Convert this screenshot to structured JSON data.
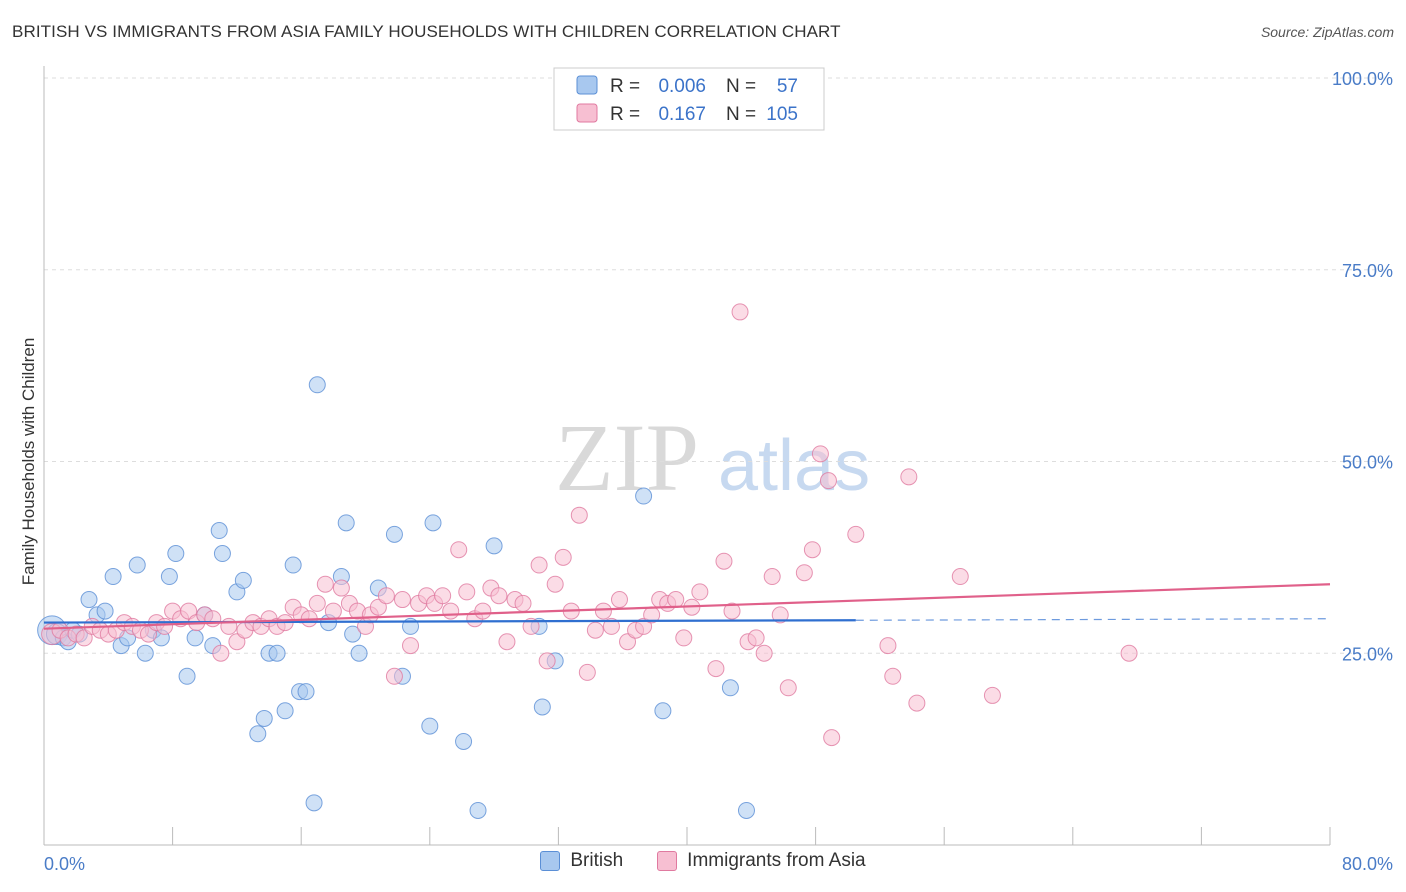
{
  "title": "BRITISH VS IMMIGRANTS FROM ASIA FAMILY HOUSEHOLDS WITH CHILDREN CORRELATION CHART",
  "source": "Source: ZipAtlas.com",
  "watermark": {
    "zip": "ZIP",
    "atlas": "atlas"
  },
  "legend_box": {
    "series": [
      {
        "r_label": "R =",
        "r_value": "0.006",
        "n_label": "N =",
        "n_value": "57"
      },
      {
        "r_label": "R =",
        "r_value": "0.167",
        "n_label": "N =",
        "n_value": "105"
      }
    ]
  },
  "bottom_legend": [
    "British",
    "Immigrants from Asia"
  ],
  "colors": {
    "british_fill": "#a8c8ef",
    "british_stroke": "#5b8fd6",
    "british_line": "#2f6fd0",
    "asia_fill": "#f7bfd2",
    "asia_stroke": "#e07aa0",
    "asia_line": "#e0608a",
    "tick_text": "#4a7cc7",
    "grid": "#dddddd"
  },
  "chart_data": {
    "type": "scatter",
    "title": "BRITISH VS IMMIGRANTS FROM ASIA FAMILY HOUSEHOLDS WITH CHILDREN CORRELATION CHART",
    "xlabel": "",
    "ylabel": "Family Households with Children",
    "xlim": [
      0,
      80
    ],
    "ylim": [
      0,
      100
    ],
    "x_tick_labels": [
      "0.0%",
      "80.0%"
    ],
    "y_ticks": [
      25,
      50,
      75,
      100
    ],
    "y_tick_labels": [
      "25.0%",
      "50.0%",
      "75.0%",
      "100.0%"
    ],
    "grid": true,
    "series": [
      {
        "name": "British",
        "r": 0.006,
        "n": 57,
        "trend": {
          "x0": 0,
          "y0": 29.0,
          "x1": 50.5,
          "y1": 29.3,
          "dashed_to_x": 80,
          "dashed_to_y": 29.5
        },
        "points": [
          [
            0.5,
            28,
            1.8
          ],
          [
            0.8,
            27.5,
            1.3
          ],
          [
            1.2,
            27,
            1.0
          ],
          [
            1.5,
            26.5,
            1.0
          ],
          [
            1.8,
            28,
            1.0
          ],
          [
            2.2,
            27.5,
            1.0
          ],
          [
            2.8,
            32,
            1.0
          ],
          [
            3.3,
            30,
            1.0
          ],
          [
            3.8,
            30.5,
            1.0
          ],
          [
            4.3,
            35,
            1.0
          ],
          [
            4.8,
            26,
            1.0
          ],
          [
            5.2,
            27,
            1.0
          ],
          [
            5.8,
            36.5,
            1.0
          ],
          [
            6.3,
            25,
            1.0
          ],
          [
            6.8,
            28,
            1.0
          ],
          [
            7.3,
            27,
            1.0
          ],
          [
            7.8,
            35,
            1.0
          ],
          [
            8.2,
            38,
            1.0
          ],
          [
            8.9,
            22,
            1.0
          ],
          [
            9.4,
            27,
            1.0
          ],
          [
            10.0,
            30,
            1.0
          ],
          [
            10.5,
            26,
            1.0
          ],
          [
            10.9,
            41,
            1.0
          ],
          [
            11.1,
            38,
            1.0
          ],
          [
            12.0,
            33,
            1.0
          ],
          [
            12.4,
            34.5,
            1.0
          ],
          [
            13.3,
            14.5,
            1.0
          ],
          [
            13.7,
            16.5,
            1.0
          ],
          [
            14.0,
            25,
            1.0
          ],
          [
            14.5,
            25,
            1.0
          ],
          [
            15.0,
            17.5,
            1.0
          ],
          [
            15.5,
            36.5,
            1.0
          ],
          [
            15.9,
            20,
            1.0
          ],
          [
            16.3,
            20,
            1.0
          ],
          [
            16.8,
            5.5,
            1.0
          ],
          [
            17.0,
            60,
            1.0
          ],
          [
            17.7,
            29,
            1.0
          ],
          [
            18.5,
            35,
            1.0
          ],
          [
            18.8,
            42,
            1.0
          ],
          [
            19.2,
            27.5,
            1.0
          ],
          [
            19.6,
            25,
            1.0
          ],
          [
            20.8,
            33.5,
            1.0
          ],
          [
            21.8,
            40.5,
            1.0
          ],
          [
            22.3,
            22,
            1.0
          ],
          [
            22.8,
            28.5,
            1.0
          ],
          [
            24.0,
            15.5,
            1.0
          ],
          [
            24.2,
            42,
            1.0
          ],
          [
            26.1,
            13.5,
            1.0
          ],
          [
            27.0,
            4.5,
            1.0
          ],
          [
            28.0,
            39,
            1.0
          ],
          [
            30.8,
            28.5,
            1.0
          ],
          [
            31.0,
            18,
            1.0
          ],
          [
            31.8,
            24,
            1.0
          ],
          [
            37.3,
            45.5,
            1.0
          ],
          [
            38.5,
            17.5,
            1.0
          ],
          [
            42.7,
            20.5,
            1.0
          ],
          [
            43.7,
            4.5,
            1.0
          ]
        ]
      },
      {
        "name": "Immigrants from Asia",
        "r": 0.167,
        "n": 105,
        "trend": {
          "x0": 0,
          "y0": 28.2,
          "x1": 80,
          "y1": 34.0
        },
        "points": [
          [
            0.5,
            27.5,
            1.3
          ],
          [
            1.0,
            28,
            1.0
          ],
          [
            1.5,
            27,
            1.0
          ],
          [
            2.0,
            27.5,
            1.0
          ],
          [
            2.5,
            27,
            1.0
          ],
          [
            3.0,
            28.5,
            1.0
          ],
          [
            3.5,
            28,
            1.0
          ],
          [
            4.0,
            27.5,
            1.0
          ],
          [
            4.5,
            28,
            1.0
          ],
          [
            5.0,
            29,
            1.0
          ],
          [
            5.5,
            28.5,
            1.0
          ],
          [
            6.0,
            28,
            1.0
          ],
          [
            6.5,
            27.5,
            1.0
          ],
          [
            7.0,
            29,
            1.0
          ],
          [
            7.5,
            28.5,
            1.0
          ],
          [
            8.0,
            30.5,
            1.0
          ],
          [
            8.5,
            29.5,
            1.0
          ],
          [
            9.0,
            30.5,
            1.0
          ],
          [
            9.5,
            29,
            1.0
          ],
          [
            10.0,
            30,
            1.0
          ],
          [
            10.5,
            29.5,
            1.0
          ],
          [
            11.0,
            25,
            1.0
          ],
          [
            11.5,
            28.5,
            1.0
          ],
          [
            12.0,
            26.5,
            1.0
          ],
          [
            12.5,
            28,
            1.0
          ],
          [
            13.0,
            29,
            1.0
          ],
          [
            13.5,
            28.5,
            1.0
          ],
          [
            14.0,
            29.5,
            1.0
          ],
          [
            14.5,
            28.5,
            1.0
          ],
          [
            15.0,
            29,
            1.0
          ],
          [
            15.5,
            31,
            1.0
          ],
          [
            16.0,
            30,
            1.0
          ],
          [
            16.5,
            29.5,
            1.0
          ],
          [
            17.0,
            31.5,
            1.0
          ],
          [
            17.5,
            34,
            1.0
          ],
          [
            18.0,
            30.5,
            1.0
          ],
          [
            18.5,
            33.5,
            1.0
          ],
          [
            19.0,
            31.5,
            1.0
          ],
          [
            19.5,
            30.5,
            1.0
          ],
          [
            20.0,
            28.5,
            1.0
          ],
          [
            20.3,
            30,
            1.0
          ],
          [
            20.8,
            31,
            1.0
          ],
          [
            21.3,
            32.5,
            1.0
          ],
          [
            21.8,
            22,
            1.0
          ],
          [
            22.3,
            32,
            1.0
          ],
          [
            22.8,
            26,
            1.0
          ],
          [
            23.3,
            31.5,
            1.0
          ],
          [
            23.8,
            32.5,
            1.0
          ],
          [
            24.3,
            31.5,
            1.0
          ],
          [
            24.8,
            32.5,
            1.0
          ],
          [
            25.3,
            30.5,
            1.0
          ],
          [
            25.8,
            38.5,
            1.0
          ],
          [
            26.3,
            33,
            1.0
          ],
          [
            26.8,
            29.5,
            1.0
          ],
          [
            27.3,
            30.5,
            1.0
          ],
          [
            27.8,
            33.5,
            1.0
          ],
          [
            28.3,
            32.5,
            1.0
          ],
          [
            28.8,
            26.5,
            1.0
          ],
          [
            29.3,
            32,
            1.0
          ],
          [
            29.8,
            31.5,
            1.0
          ],
          [
            30.3,
            28.5,
            1.0
          ],
          [
            30.8,
            36.5,
            1.0
          ],
          [
            31.3,
            24,
            1.0
          ],
          [
            31.8,
            34,
            1.0
          ],
          [
            32.3,
            37.5,
            1.0
          ],
          [
            32.8,
            30.5,
            1.0
          ],
          [
            33.3,
            43,
            1.0
          ],
          [
            33.8,
            22.5,
            1.0
          ],
          [
            34.3,
            28,
            1.0
          ],
          [
            34.8,
            30.5,
            1.0
          ],
          [
            35.3,
            28.5,
            1.0
          ],
          [
            35.8,
            32,
            1.0
          ],
          [
            36.3,
            26.5,
            1.0
          ],
          [
            36.8,
            28,
            1.0
          ],
          [
            37.3,
            28.5,
            1.0
          ],
          [
            37.8,
            30,
            1.0
          ],
          [
            38.3,
            32,
            1.0
          ],
          [
            38.8,
            31.5,
            1.0
          ],
          [
            39.3,
            32,
            1.0
          ],
          [
            39.8,
            27,
            1.0
          ],
          [
            40.3,
            31,
            1.0
          ],
          [
            40.8,
            33,
            1.0
          ],
          [
            41.8,
            23,
            1.0
          ],
          [
            42.3,
            37,
            1.0
          ],
          [
            42.8,
            30.5,
            1.0
          ],
          [
            43.3,
            69.5,
            1.0
          ],
          [
            43.8,
            26.5,
            1.0
          ],
          [
            44.3,
            27,
            1.0
          ],
          [
            44.8,
            25,
            1.0
          ],
          [
            45.3,
            35,
            1.0
          ],
          [
            45.8,
            30,
            1.0
          ],
          [
            46.3,
            20.5,
            1.0
          ],
          [
            47.3,
            35.5,
            1.0
          ],
          [
            47.8,
            38.5,
            1.0
          ],
          [
            48.3,
            51,
            1.0
          ],
          [
            48.8,
            47.5,
            1.0
          ],
          [
            49.0,
            14,
            1.0
          ],
          [
            50.5,
            40.5,
            1.0
          ],
          [
            52.5,
            26,
            1.0
          ],
          [
            52.8,
            22,
            1.0
          ],
          [
            53.8,
            48,
            1.0
          ],
          [
            54.3,
            18.5,
            1.0
          ],
          [
            57.0,
            35,
            1.0
          ],
          [
            59.0,
            19.5,
            1.0
          ],
          [
            67.5,
            25,
            1.0
          ]
        ]
      }
    ]
  }
}
